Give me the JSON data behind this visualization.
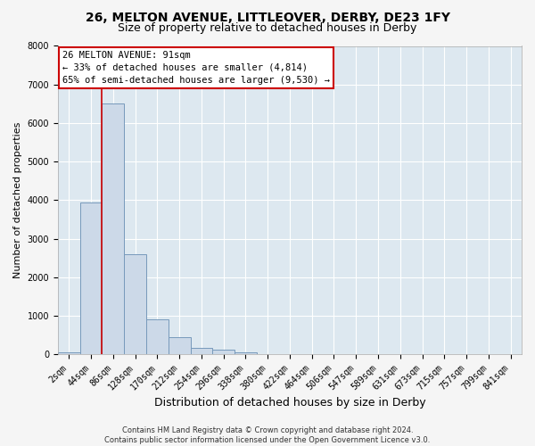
{
  "title1": "26, MELTON AVENUE, LITTLEOVER, DERBY, DE23 1FY",
  "title2": "Size of property relative to detached houses in Derby",
  "xlabel": "Distribution of detached houses by size in Derby",
  "ylabel": "Number of detached properties",
  "bar_labels": [
    "2sqm",
    "44sqm",
    "86sqm",
    "128sqm",
    "170sqm",
    "212sqm",
    "254sqm",
    "296sqm",
    "338sqm",
    "380sqm",
    "422sqm",
    "464sqm",
    "506sqm",
    "547sqm",
    "589sqm",
    "631sqm",
    "673sqm",
    "715sqm",
    "757sqm",
    "799sqm",
    "841sqm"
  ],
  "bar_values": [
    50,
    3950,
    6500,
    2600,
    900,
    450,
    170,
    130,
    60,
    0,
    0,
    0,
    0,
    0,
    0,
    0,
    0,
    0,
    0,
    0,
    0
  ],
  "bar_color": "#ccd9e8",
  "bar_edge_color": "#7799bb",
  "ylim": [
    0,
    8000
  ],
  "yticks": [
    0,
    1000,
    2000,
    3000,
    4000,
    5000,
    6000,
    7000,
    8000
  ],
  "property_label": "26 MELTON AVENUE: 91sqm",
  "annotation_line1": "← 33% of detached houses are smaller (4,814)",
  "annotation_line2": "65% of semi-detached houses are larger (9,530) →",
  "vline_color": "#cc0000",
  "vline_x": 1.5,
  "annotation_border_color": "#cc0000",
  "footer": "Contains HM Land Registry data © Crown copyright and database right 2024.\nContains public sector information licensed under the Open Government Licence v3.0.",
  "plot_bg_color": "#dde8f0",
  "fig_bg_color": "#f5f5f5",
  "grid_color": "#ffffff",
  "title1_fontsize": 10,
  "title2_fontsize": 9,
  "xlabel_fontsize": 9,
  "ylabel_fontsize": 8,
  "tick_fontsize": 7,
  "annot_fontsize": 7.5,
  "footer_fontsize": 6
}
